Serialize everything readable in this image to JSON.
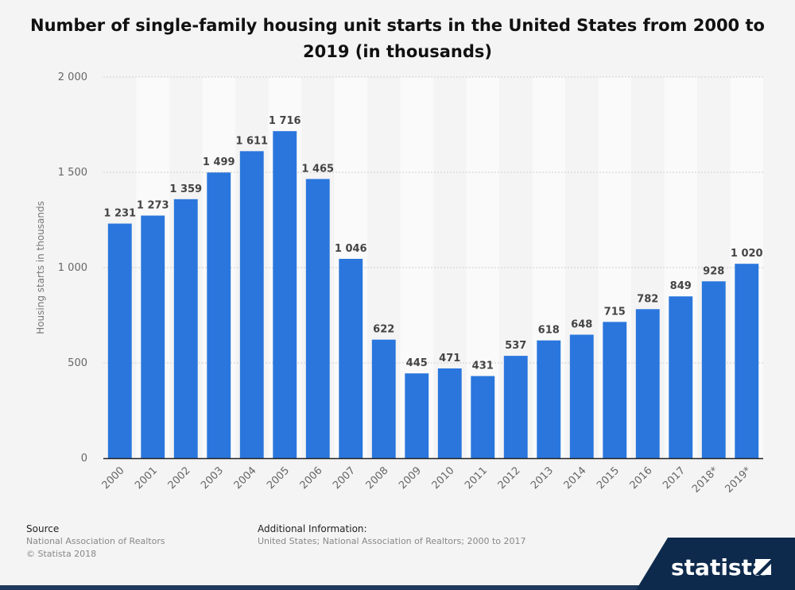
{
  "page": {
    "source_heading": "Source",
    "source_lines": [
      "National Association of Realtors",
      "© Statista 2018"
    ],
    "info_heading": "Additional Information:",
    "info_lines": [
      "United States; National Association of Realtors; 2000 to 2017"
    ],
    "brand_name": "statista"
  },
  "colors": {
    "bar": "#2a76dd",
    "grid": "#cfcfcf",
    "band_light": "#fafafa",
    "band_dark": "#f4f4f4",
    "brand_bg": "#0d2a4c"
  },
  "chart_data": {
    "type": "bar",
    "title": "Number of single-family housing unit starts in the United States from 2000 to 2019 (in thousands)",
    "xlabel": "",
    "ylabel": "Housing starts in thousands",
    "ylim": [
      0,
      2000
    ],
    "yticks": [
      0,
      500,
      1000,
      1500,
      2000
    ],
    "ytick_labels": [
      "0",
      "500",
      "1 000",
      "1 500",
      "2 000"
    ],
    "grid": true,
    "categories": [
      "2000",
      "2001",
      "2002",
      "2003",
      "2004",
      "2005",
      "2006",
      "2007",
      "2008",
      "2009",
      "2010",
      "2011",
      "2012",
      "2013",
      "2014",
      "2015",
      "2016",
      "2017",
      "2018*",
      "2019*"
    ],
    "values": [
      1231,
      1273,
      1359,
      1499,
      1611,
      1716,
      1465,
      1046,
      622,
      445,
      471,
      431,
      537,
      618,
      648,
      715,
      782,
      849,
      928,
      1020
    ],
    "value_labels": [
      "1 231",
      "1 273",
      "1 359",
      "1 499",
      "1 611",
      "1 716",
      "1 465",
      "1 046",
      "622",
      "445",
      "471",
      "431",
      "537",
      "618",
      "648",
      "715",
      "782",
      "849",
      "928",
      "1 020"
    ]
  }
}
